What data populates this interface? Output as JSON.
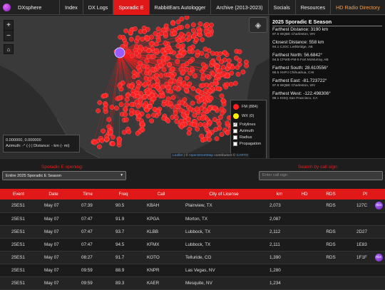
{
  "nav": {
    "logo": "DXsphere",
    "links": [
      "Index",
      "DX Logs",
      "Sporadic E",
      "RabbitEars Autologger",
      "Archive (2013-2023)",
      "Socials",
      "Resources",
      "HD Radio Directory"
    ]
  },
  "map": {
    "zoom_in": "+",
    "zoom_out": "−",
    "coords_value": "0.000000, 0.000000",
    "coords_detail": "Azimuth: -° (-) | Distance: - km (- mi)",
    "legend": {
      "fm": "FM (884)",
      "wx": "WX (0)",
      "options": [
        {
          "label": "Polylines",
          "checked": true
        },
        {
          "label": "Azimuth",
          "checked": false
        },
        {
          "label": "Radius",
          "checked": false
        },
        {
          "label": "Propagation",
          "checked": false
        }
      ]
    },
    "attribution": {
      "leaflet": "Leaflet",
      "osm": "OpenStreetMap",
      "contrib": "contributors",
      "carto": "CARTO"
    },
    "colors": {
      "fm": "#ff2020",
      "wx": "#ffee00",
      "receiver": "#9b5cff"
    }
  },
  "stats": {
    "title": "2025 Sporadic E Season",
    "items": [
      {
        "title": "Farthest Distance: 3190 km",
        "sub": "97.5 WQBE Charleston, WV"
      },
      {
        "title": "Closest Distance: 558 km",
        "sub": "94.1 CJOC Lethbridge, AB"
      },
      {
        "title": "Farthest North: 56.6842°",
        "sub": "94.5 CFWE-FM-5 Fort McMurray, AB"
      },
      {
        "title": "Farthest South: 28.610556°",
        "sub": "96.5 XHPJ Chihuahua, CHI"
      },
      {
        "title": "Farthest East: -81.723722°",
        "sub": "97.5 WQBE Charleston, WV"
      },
      {
        "title": "Farthest West: -122.498306°",
        "sub": "98.1 KISQ San Francisco, CA"
      }
    ]
  },
  "filters": {
    "opening_label": "Sporadic E opening:",
    "opening_value": "Entire 2025 Sporadic E Season",
    "search_label": "Search by call sign:",
    "search_placeholder": "Enter call sign"
  },
  "table": {
    "headers": [
      "Event",
      "Date",
      "Time",
      "Freq",
      "Call",
      "City of License",
      "km",
      "HD",
      "RDS",
      "PI"
    ],
    "rows": [
      {
        "event": "25ES1",
        "date": "May 07",
        "time": "07:39",
        "freq": "90.5",
        "call": "KBAH",
        "city": "Plainview, TX",
        "km": "2,073",
        "hd": "",
        "rds": "RDS",
        "pi": "127C",
        "badge": true
      },
      {
        "event": "25ES1",
        "date": "May 07",
        "time": "07:47",
        "freq": "91.9",
        "call": "KPGA",
        "city": "Morton, TX",
        "km": "2,087",
        "hd": "",
        "rds": "",
        "pi": "",
        "badge": false
      },
      {
        "event": "25ES1",
        "date": "May 07",
        "time": "07:47",
        "freq": "93.7",
        "call": "KLBB",
        "city": "Lubbock, TX",
        "km": "2,112",
        "hd": "",
        "rds": "RDS",
        "pi": "2D27",
        "badge": false
      },
      {
        "event": "25ES1",
        "date": "May 07",
        "time": "07:47",
        "freq": "94.5",
        "call": "KFMX",
        "city": "Lubbock, TX",
        "km": "2,111",
        "hd": "",
        "rds": "RDS",
        "pi": "1E83",
        "badge": false
      },
      {
        "event": "25ES1",
        "date": "May 07",
        "time": "08:27",
        "freq": "91.7",
        "call": "KOTO",
        "city": "Telluride, CO",
        "km": "1,390",
        "hd": "",
        "rds": "RDS",
        "pi": "1F1F",
        "badge": true
      },
      {
        "event": "25ES1",
        "date": "May 07",
        "time": "09:59",
        "freq": "88.9",
        "call": "KNPR",
        "city": "Las Vegas, NV",
        "km": "1,280",
        "hd": "",
        "rds": "",
        "pi": "",
        "badge": false
      },
      {
        "event": "25ES1",
        "date": "May 07",
        "time": "09:59",
        "freq": "89.3",
        "call": "KAER",
        "city": "Mesquite, NV",
        "km": "1,234",
        "hd": "",
        "rds": "",
        "pi": "",
        "badge": false
      }
    ],
    "badge_text": "RDS"
  }
}
